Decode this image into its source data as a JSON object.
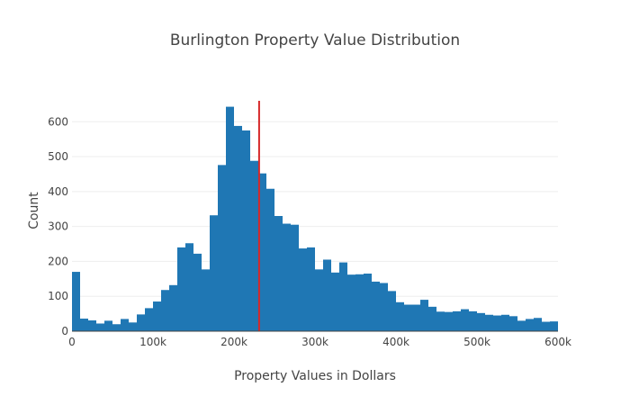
{
  "chart_data": {
    "type": "bar",
    "title": "Burlington Property Value Distribution",
    "xlabel": "Property Values in Dollars",
    "ylabel": "Count",
    "xlim": [
      0,
      600000
    ],
    "ylim": [
      0,
      660
    ],
    "bin_width": 10000,
    "grid": true,
    "x_ticks": [
      {
        "value": 0,
        "label": "0"
      },
      {
        "value": 100000,
        "label": "100k"
      },
      {
        "value": 200000,
        "label": "200k"
      },
      {
        "value": 300000,
        "label": "300k"
      },
      {
        "value": 400000,
        "label": "400k"
      },
      {
        "value": 500000,
        "label": "500k"
      },
      {
        "value": 600000,
        "label": "600k"
      }
    ],
    "y_ticks": [
      {
        "value": 0,
        "label": "0"
      },
      {
        "value": 100,
        "label": "100"
      },
      {
        "value": 200,
        "label": "200"
      },
      {
        "value": 300,
        "label": "300"
      },
      {
        "value": 400,
        "label": "400"
      },
      {
        "value": 500,
        "label": "500"
      },
      {
        "value": 600,
        "label": "600"
      }
    ],
    "bar_color": "#1f77b4",
    "bins_start": [
      0,
      10000,
      20000,
      30000,
      40000,
      50000,
      60000,
      70000,
      80000,
      90000,
      100000,
      110000,
      120000,
      130000,
      140000,
      150000,
      160000,
      170000,
      180000,
      190000,
      200000,
      210000,
      220000,
      230000,
      240000,
      250000,
      260000,
      270000,
      280000,
      290000,
      300000,
      310000,
      320000,
      330000,
      340000,
      350000,
      360000,
      370000,
      380000,
      390000,
      400000,
      410000,
      420000,
      430000,
      440000,
      450000,
      460000,
      470000,
      480000,
      490000,
      500000,
      510000,
      520000,
      530000,
      540000,
      550000,
      560000,
      570000,
      580000,
      590000
    ],
    "values": [
      170,
      36,
      31,
      22,
      30,
      20,
      35,
      25,
      48,
      66,
      85,
      118,
      132,
      240,
      252,
      222,
      177,
      332,
      476,
      643,
      588,
      575,
      488,
      452,
      408,
      330,
      308,
      305,
      237,
      240,
      177,
      205,
      168,
      197,
      162,
      163,
      165,
      142,
      138,
      115,
      83,
      76,
      76,
      90,
      70,
      56,
      55,
      57,
      63,
      57,
      52,
      47,
      45,
      47,
      43,
      30,
      35,
      38,
      27,
      28
    ],
    "reference_line": {
      "x": 231000,
      "color": "#d62728"
    }
  }
}
